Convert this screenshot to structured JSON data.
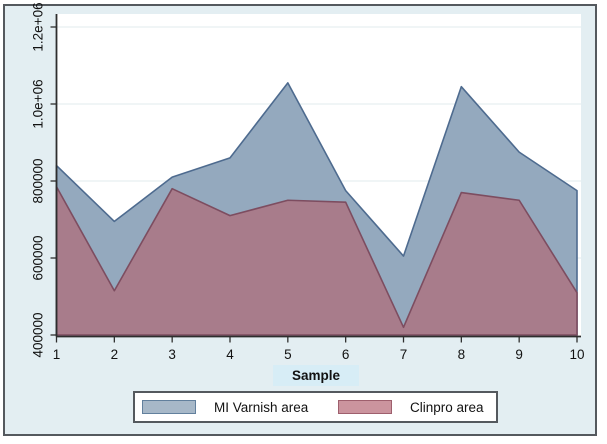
{
  "figure": {
    "background": "#e3eef2",
    "plot_background": "#ffffff",
    "border_color": "#54595e",
    "gridline_color": "#e7eff1",
    "axis_color": "#2e2e2e",
    "text_color": "#121212",
    "xtitle_highlight": "#d7edf6"
  },
  "legend": {
    "position": "bottom",
    "items": [
      {
        "label": "MI Varnish area",
        "swatch_fill": "#a7b8c8",
        "swatch_border": "#62809d"
      },
      {
        "label": "Clinpro area",
        "swatch_fill": "#cb949e",
        "swatch_border": "#9e5f6d"
      }
    ]
  },
  "chart_data": {
    "type": "area",
    "title": "",
    "xlabel": "Sample",
    "ylabel": "",
    "grid": true,
    "legend_position": "bottom",
    "baseline": 400000,
    "ylim": [
      400000,
      1200000
    ],
    "x": [
      1,
      2,
      3,
      4,
      5,
      6,
      7,
      8,
      9,
      10
    ],
    "x_ticks": [
      "1",
      "2",
      "3",
      "4",
      "5",
      "6",
      "7",
      "8",
      "9",
      "10"
    ],
    "y_ticks": [
      {
        "value": 400000,
        "label": "400000"
      },
      {
        "value": 600000,
        "label": "600000"
      },
      {
        "value": 800000,
        "label": "800000"
      },
      {
        "value": 1000000,
        "label": "1.0e+06"
      },
      {
        "value": 1200000,
        "label": "1.2e+06"
      }
    ],
    "series": [
      {
        "name": "MI Varnish area",
        "fill": "#94a9be",
        "stroke": "#4e6b8f",
        "values": [
          840000,
          695000,
          810000,
          860000,
          1055000,
          775000,
          605000,
          1045000,
          875000,
          775000
        ]
      },
      {
        "name": "Clinpro area",
        "fill": "#a87c8b",
        "stroke": "#7d4d60",
        "values": [
          785000,
          515000,
          780000,
          710000,
          750000,
          745000,
          420000,
          770000,
          750000,
          510000
        ]
      }
    ]
  }
}
